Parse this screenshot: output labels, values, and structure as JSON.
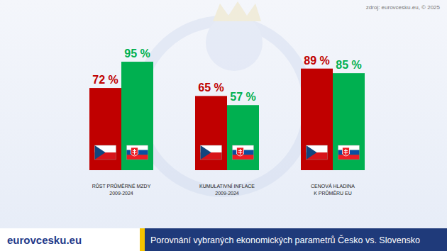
{
  "chart_data": {
    "type": "bar",
    "title": "Porovnání vybraných ekonomických parametrů Česko vs. Slovensko",
    "annotations": [
      "zdroj: eurovcesku.eu, © 2025",
      "eurovcesku.eu"
    ],
    "categories": [
      "RŮST PRŮMĚRNÉ MZDY\n2009-2024",
      "KUMULATIVNÍ INFLACE\n2009-2024",
      "CENOVÁ HLADINA\nK PRŮMĚRU EU"
    ],
    "series": [
      {
        "color": "#c00000",
        "marker": "cz",
        "values": [
          72,
          65,
          89
        ],
        "value_labels": [
          "72 %",
          "65 %",
          "89 %"
        ]
      },
      {
        "color": "#00b050",
        "marker": "sk",
        "values": [
          95,
          57,
          85
        ],
        "value_labels": [
          "95 %",
          "57 %",
          "85 %"
        ]
      }
    ],
    "ylim": [
      0,
      100
    ],
    "tick_labels": false,
    "data_labels": true,
    "grid": false
  }
}
